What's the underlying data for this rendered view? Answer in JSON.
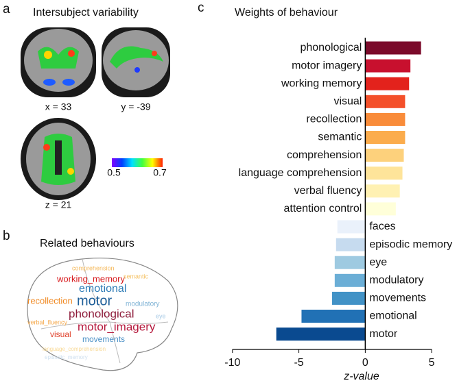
{
  "panel_a": {
    "label": "a",
    "title": "Intersubject variability",
    "slices": [
      "x = 33",
      "y = -39",
      "z = 21"
    ],
    "colorbar_labels": [
      "0.5",
      "0.7"
    ]
  },
  "panel_b": {
    "label": "b",
    "title": "Related behaviours",
    "words": [
      "comprehension",
      "working_memory",
      "semantic",
      "emotional",
      "modulatory",
      "motor",
      "recollection",
      "eye",
      "phonological",
      "verbal_fluency",
      "motor_imagery",
      "visual",
      "movements",
      "language_comprehension",
      "episodic_memory"
    ]
  },
  "chart_data": {
    "type": "hbar",
    "panel_label": "c",
    "title": "Weights of behaviour",
    "x_label": "z-value",
    "categories": [
      "phonological",
      "motor imagery",
      "working memory",
      "visual",
      "recollection",
      "semantic",
      "comprehension",
      "language comprehension",
      "verbal fluency",
      "attention control",
      "faces",
      "episodic memory",
      "eye",
      "modulatory",
      "movements",
      "emotional",
      "motor"
    ],
    "values": [
      4.2,
      3.4,
      3.3,
      3.0,
      3.0,
      3.0,
      2.9,
      2.8,
      2.6,
      2.3,
      -2.1,
      -2.2,
      -2.3,
      -2.3,
      -2.5,
      -4.8,
      -6.7
    ],
    "colors": [
      "#7b0a2a",
      "#c8102e",
      "#e3221c",
      "#f4502a",
      "#f98c3a",
      "#fbac4c",
      "#fdd17c",
      "#fee49a",
      "#fff1b3",
      "#ffffd9",
      "#eaf1fb",
      "#c6dbef",
      "#9ecae1",
      "#6baed6",
      "#4292c6",
      "#2171b5",
      "#0a4a90"
    ],
    "xlim": [
      -10.3,
      5.2
    ],
    "xticks": [
      -10,
      -5,
      0,
      5
    ]
  }
}
